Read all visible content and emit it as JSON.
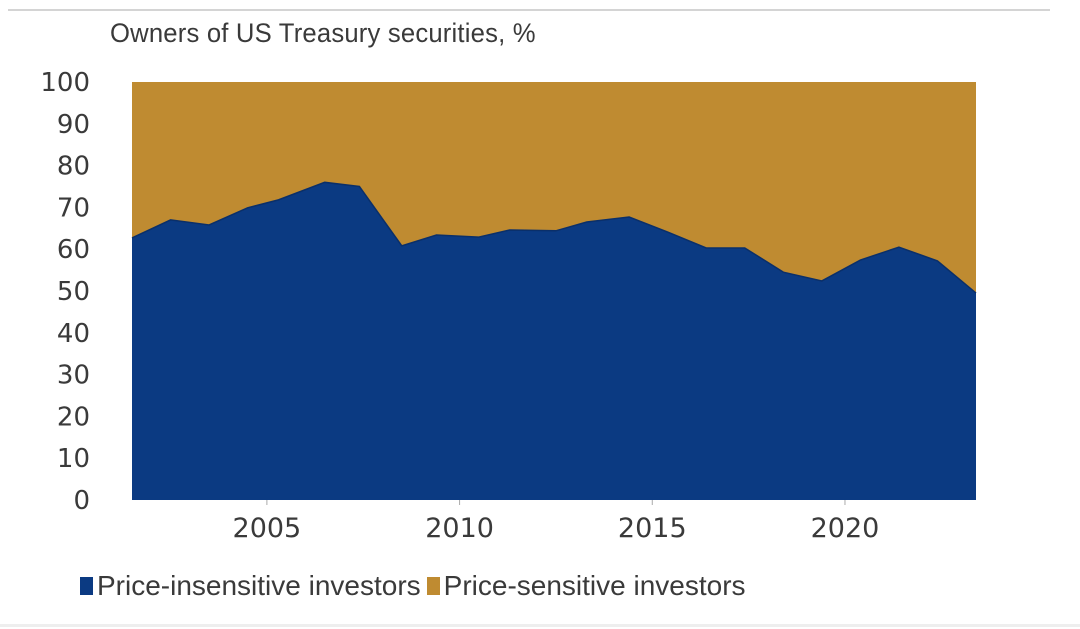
{
  "chart_data": {
    "type": "area",
    "stacked": true,
    "title": "Owners of US Treasury securities, %",
    "xlabel": "",
    "ylabel": "",
    "xlim": [
      2001.5,
      2023.4
    ],
    "ylim": [
      0,
      100
    ],
    "yticks": [
      0,
      10,
      20,
      30,
      40,
      50,
      60,
      70,
      80,
      90,
      100
    ],
    "xticks": [
      2005,
      2010,
      2015,
      2020
    ],
    "grid": false,
    "legend_position": "bottom",
    "x": [
      2001.5,
      2002.5,
      2003.5,
      2004.5,
      2005.3,
      2006.5,
      2007.4,
      2008.5,
      2009.4,
      2010.5,
      2011.3,
      2012.5,
      2013.3,
      2014.4,
      2015.4,
      2016.4,
      2017.4,
      2018.4,
      2019.4,
      2020.4,
      2021.4,
      2022.4,
      2023.4
    ],
    "series": [
      {
        "name": "Price-insensitive investors",
        "color": "#0b3a82",
        "values": [
          62.7,
          67.0,
          65.8,
          69.9,
          71.8,
          76.0,
          75.0,
          60.8,
          63.4,
          62.9,
          64.6,
          64.4,
          66.5,
          67.7,
          64.1,
          60.3,
          60.3,
          54.5,
          52.4,
          57.4,
          60.5,
          57.2,
          49.5
        ]
      },
      {
        "name": "Price-sensitive investors",
        "color": "#bf8b31",
        "values": [
          37.3,
          33.0,
          34.2,
          30.1,
          28.2,
          24.0,
          25.0,
          39.2,
          36.6,
          37.1,
          35.4,
          35.6,
          33.5,
          32.3,
          35.9,
          39.7,
          39.7,
          45.5,
          47.6,
          42.6,
          39.5,
          42.8,
          50.5
        ]
      }
    ]
  }
}
